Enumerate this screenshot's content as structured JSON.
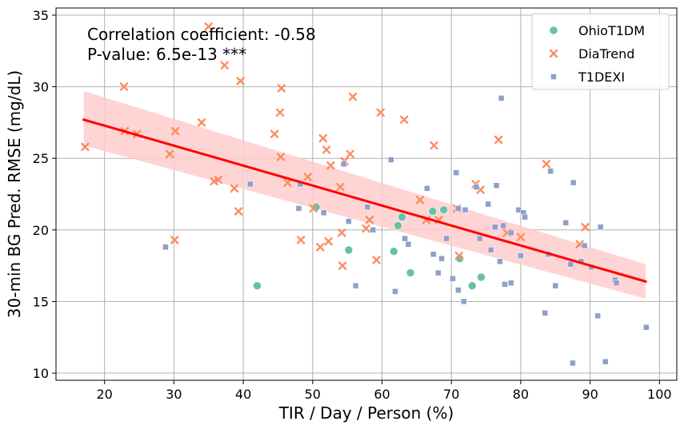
{
  "chart_data": {
    "type": "scatter",
    "xlabel": "TIR / Day / Person (%)",
    "ylabel": "30-min BG Pred. RMSE (mg/dL)",
    "xlim": [
      13,
      102.5
    ],
    "ylim": [
      9.5,
      35.5
    ],
    "xticks": [
      20,
      30,
      40,
      50,
      60,
      70,
      80,
      90,
      100
    ],
    "yticks": [
      10,
      15,
      20,
      25,
      30,
      35
    ],
    "grid": true,
    "legend_position": "top-right",
    "annotation": {
      "line1": "Correlation coefficient: -0.58",
      "line2": "P-value: 6.5e-13 ***"
    },
    "regression": {
      "color": "#ff0000",
      "band_color": "#ffcccc",
      "x": [
        17,
        98
      ],
      "y": [
        27.7,
        16.4
      ],
      "band_upper": [
        29.7,
        17.6
      ],
      "band_lower": [
        25.9,
        15.2
      ]
    },
    "series": [
      {
        "name": "OhioT1DM",
        "marker": "circle",
        "color": "#66c2a5",
        "points": [
          [
            42.0,
            16.1
          ],
          [
            50.5,
            21.6
          ],
          [
            55.2,
            18.6
          ],
          [
            61.7,
            18.5
          ],
          [
            62.3,
            20.3
          ],
          [
            62.9,
            20.9
          ],
          [
            64.1,
            17.0
          ],
          [
            67.3,
            21.3
          ],
          [
            68.9,
            21.4
          ],
          [
            71.2,
            18.0
          ],
          [
            73.0,
            16.1
          ],
          [
            74.3,
            16.7
          ]
        ]
      },
      {
        "name": "DiaTrend",
        "marker": "x",
        "color": "#fc8d62",
        "points": [
          [
            17.2,
            25.8
          ],
          [
            22.8,
            30.0
          ],
          [
            22.9,
            26.9
          ],
          [
            24.7,
            26.7
          ],
          [
            29.4,
            25.3
          ],
          [
            30.1,
            19.3
          ],
          [
            30.2,
            26.9
          ],
          [
            34.0,
            27.5
          ],
          [
            35.0,
            34.2
          ],
          [
            35.8,
            23.4
          ],
          [
            36.4,
            23.5
          ],
          [
            37.3,
            31.5
          ],
          [
            38.7,
            22.9
          ],
          [
            39.3,
            21.3
          ],
          [
            39.6,
            30.4
          ],
          [
            44.5,
            26.7
          ],
          [
            45.3,
            28.2
          ],
          [
            45.4,
            25.1
          ],
          [
            45.5,
            29.9
          ],
          [
            46.4,
            23.3
          ],
          [
            48.3,
            19.3
          ],
          [
            49.3,
            23.7
          ],
          [
            50.1,
            21.5
          ],
          [
            51.1,
            18.8
          ],
          [
            51.5,
            26.4
          ],
          [
            52.0,
            25.6
          ],
          [
            52.3,
            19.2
          ],
          [
            52.6,
            24.5
          ],
          [
            54.0,
            23.0
          ],
          [
            54.2,
            19.8
          ],
          [
            54.3,
            17.5
          ],
          [
            54.6,
            24.8
          ],
          [
            55.4,
            25.3
          ],
          [
            55.8,
            29.3
          ],
          [
            57.7,
            20.1
          ],
          [
            58.2,
            20.7
          ],
          [
            59.2,
            17.9
          ],
          [
            59.8,
            28.2
          ],
          [
            63.2,
            27.7
          ],
          [
            65.5,
            22.1
          ],
          [
            66.4,
            20.7
          ],
          [
            67.5,
            25.9
          ],
          [
            68.2,
            20.7
          ],
          [
            70.8,
            21.5
          ],
          [
            71.1,
            18.2
          ],
          [
            73.5,
            23.2
          ],
          [
            74.2,
            22.8
          ],
          [
            76.8,
            26.3
          ],
          [
            78.0,
            19.8
          ],
          [
            80.0,
            19.5
          ],
          [
            83.7,
            24.6
          ],
          [
            88.5,
            19.0
          ],
          [
            89.3,
            20.2
          ]
        ]
      },
      {
        "name": "T1DEXI",
        "marker": "square",
        "color": "#8da0cb",
        "points": [
          [
            28.8,
            18.8
          ],
          [
            41.0,
            23.2
          ],
          [
            48.0,
            21.5
          ],
          [
            48.2,
            23.2
          ],
          [
            51.6,
            21.2
          ],
          [
            54.5,
            24.6
          ],
          [
            55.2,
            20.6
          ],
          [
            56.2,
            16.1
          ],
          [
            57.9,
            21.6
          ],
          [
            58.7,
            20.0
          ],
          [
            61.3,
            24.9
          ],
          [
            61.9,
            15.7
          ],
          [
            63.3,
            19.4
          ],
          [
            63.8,
            19.0
          ],
          [
            66.5,
            22.9
          ],
          [
            67.4,
            18.3
          ],
          [
            68.1,
            17.0
          ],
          [
            68.6,
            18.0
          ],
          [
            69.3,
            19.4
          ],
          [
            70.2,
            16.6
          ],
          [
            70.7,
            24.0
          ],
          [
            71.0,
            21.5
          ],
          [
            71.0,
            15.8
          ],
          [
            71.8,
            15.0
          ],
          [
            72.0,
            21.4
          ],
          [
            73.6,
            23.0
          ],
          [
            74.1,
            19.4
          ],
          [
            75.3,
            21.8
          ],
          [
            75.7,
            18.6
          ],
          [
            76.3,
            20.2
          ],
          [
            76.5,
            23.1
          ],
          [
            77.0,
            17.8
          ],
          [
            77.2,
            29.2
          ],
          [
            77.5,
            20.3
          ],
          [
            77.7,
            16.2
          ],
          [
            78.6,
            19.8
          ],
          [
            78.6,
            16.3
          ],
          [
            79.7,
            21.4
          ],
          [
            80.0,
            18.2
          ],
          [
            80.4,
            21.2
          ],
          [
            80.6,
            20.9
          ],
          [
            83.5,
            14.2
          ],
          [
            84.0,
            18.3
          ],
          [
            84.3,
            24.1
          ],
          [
            85.0,
            16.1
          ],
          [
            86.5,
            20.5
          ],
          [
            87.2,
            17.6
          ],
          [
            87.5,
            10.7
          ],
          [
            87.6,
            23.3
          ],
          [
            88.7,
            17.8
          ],
          [
            89.2,
            18.9
          ],
          [
            90.2,
            17.4
          ],
          [
            91.1,
            14.0
          ],
          [
            91.5,
            20.2
          ],
          [
            92.2,
            10.8
          ],
          [
            93.6,
            16.5
          ],
          [
            98.1,
            13.2
          ],
          [
            93.8,
            16.3
          ]
        ]
      }
    ]
  }
}
